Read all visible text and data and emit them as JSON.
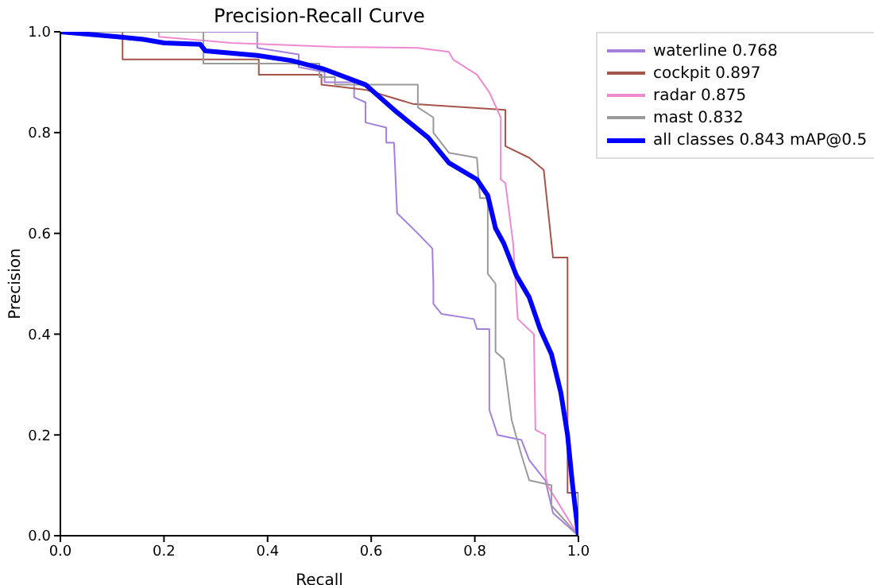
{
  "chart_data": {
    "type": "line",
    "title": "Precision-Recall Curve",
    "xlabel": "Recall",
    "ylabel": "Precision",
    "xlim": [
      0,
      1
    ],
    "ylim": [
      0,
      1
    ],
    "xticks": [
      {
        "value": 0,
        "label": "0.0"
      },
      0.2,
      0.4,
      0.6,
      0.8,
      {
        "value": 1,
        "label": "1.0"
      }
    ],
    "yticks": [
      {
        "value": 0,
        "label": "0.0"
      },
      0.2,
      0.4,
      0.6,
      0.8,
      {
        "value": 1,
        "label": "1.0"
      }
    ],
    "grid": false,
    "legend": "right",
    "marker": "none",
    "line_style": "solid",
    "series": [
      {
        "name": "waterline 0.768",
        "color": "#a57fdc",
        "x": [
          0,
          0.38,
          0.38,
          0.46,
          0.46,
          0.51,
          0.51,
          0.567,
          0.567,
          0.589,
          0.589,
          0.629,
          0.629,
          0.644,
          0.65,
          0.69,
          0.718,
          0.72,
          0.72,
          0.736,
          0.798,
          0.804,
          0.828,
          0.828,
          0.844,
          0.89,
          0.905,
          0.936,
          0.951,
          1
        ],
        "values": [
          1,
          1,
          0.968,
          0.955,
          0.93,
          0.92,
          0.9,
          0.9,
          0.87,
          0.86,
          0.82,
          0.81,
          0.78,
          0.78,
          0.64,
          0.6,
          0.57,
          0.5,
          0.46,
          0.44,
          0.43,
          0.41,
          0.41,
          0.25,
          0.2,
          0.19,
          0.15,
          0.11,
          0.045,
          0
        ]
      },
      {
        "name": "cockpit 0.897",
        "color": "#a5544c",
        "x": [
          0,
          0.12,
          0.12,
          0.383,
          0.383,
          0.504,
          0.504,
          0.589,
          0.68,
          0.859,
          0.859,
          0.905,
          0.933,
          0.951,
          0.979,
          0.979,
          1,
          1
        ],
        "values": [
          1,
          1,
          0.945,
          0.945,
          0.915,
          0.915,
          0.895,
          0.885,
          0.857,
          0.845,
          0.773,
          0.75,
          0.726,
          0.552,
          0.552,
          0.085,
          0.085,
          0
        ]
      },
      {
        "name": "radar 0.875",
        "color": "#f08ad0",
        "x": [
          0,
          0.19,
          0.19,
          0.33,
          0.53,
          0.69,
          0.75,
          0.758,
          0.804,
          0.828,
          0.85,
          0.85,
          0.859,
          0.874,
          0.883,
          0.914,
          0.917,
          0.936,
          0.936,
          0.94,
          1
        ],
        "values": [
          1,
          1,
          0.99,
          0.978,
          0.97,
          0.968,
          0.96,
          0.945,
          0.915,
          0.88,
          0.83,
          0.707,
          0.7,
          0.58,
          0.43,
          0.4,
          0.21,
          0.2,
          0.126,
          0.1,
          0
        ]
      },
      {
        "name": "mast 0.832",
        "color": "#9a9a9a",
        "x": [
          0,
          0.276,
          0.276,
          0.5,
          0.5,
          0.53,
          0.53,
          0.69,
          0.69,
          0.72,
          0.72,
          0.75,
          0.804,
          0.81,
          0.825,
          0.825,
          0.84,
          0.84,
          0.856,
          0.871,
          0.89,
          0.905,
          0.948,
          0.948,
          1
        ],
        "values": [
          1,
          1,
          0.937,
          0.937,
          0.91,
          0.91,
          0.895,
          0.895,
          0.85,
          0.83,
          0.8,
          0.76,
          0.75,
          0.67,
          0.67,
          0.52,
          0.5,
          0.365,
          0.35,
          0.23,
          0.16,
          0.11,
          0.1,
          0.06,
          0
        ]
      },
      {
        "name": "all classes 0.843 mAP@0.5",
        "color": "#0000ff",
        "x": [
          0,
          0.11,
          0.16,
          0.2,
          0.27,
          0.28,
          0.38,
          0.445,
          0.506,
          0.589,
          0.65,
          0.71,
          0.75,
          0.804,
          0.825,
          0.84,
          0.856,
          0.88,
          0.905,
          0.926,
          0.948,
          0.966,
          0.979,
          0.988,
          1
        ],
        "values": [
          1,
          0.99,
          0.985,
          0.978,
          0.975,
          0.962,
          0.953,
          0.943,
          0.927,
          0.895,
          0.84,
          0.79,
          0.74,
          0.707,
          0.675,
          0.61,
          0.58,
          0.517,
          0.473,
          0.41,
          0.36,
          0.284,
          0.2,
          0.107,
          0
        ]
      }
    ]
  }
}
